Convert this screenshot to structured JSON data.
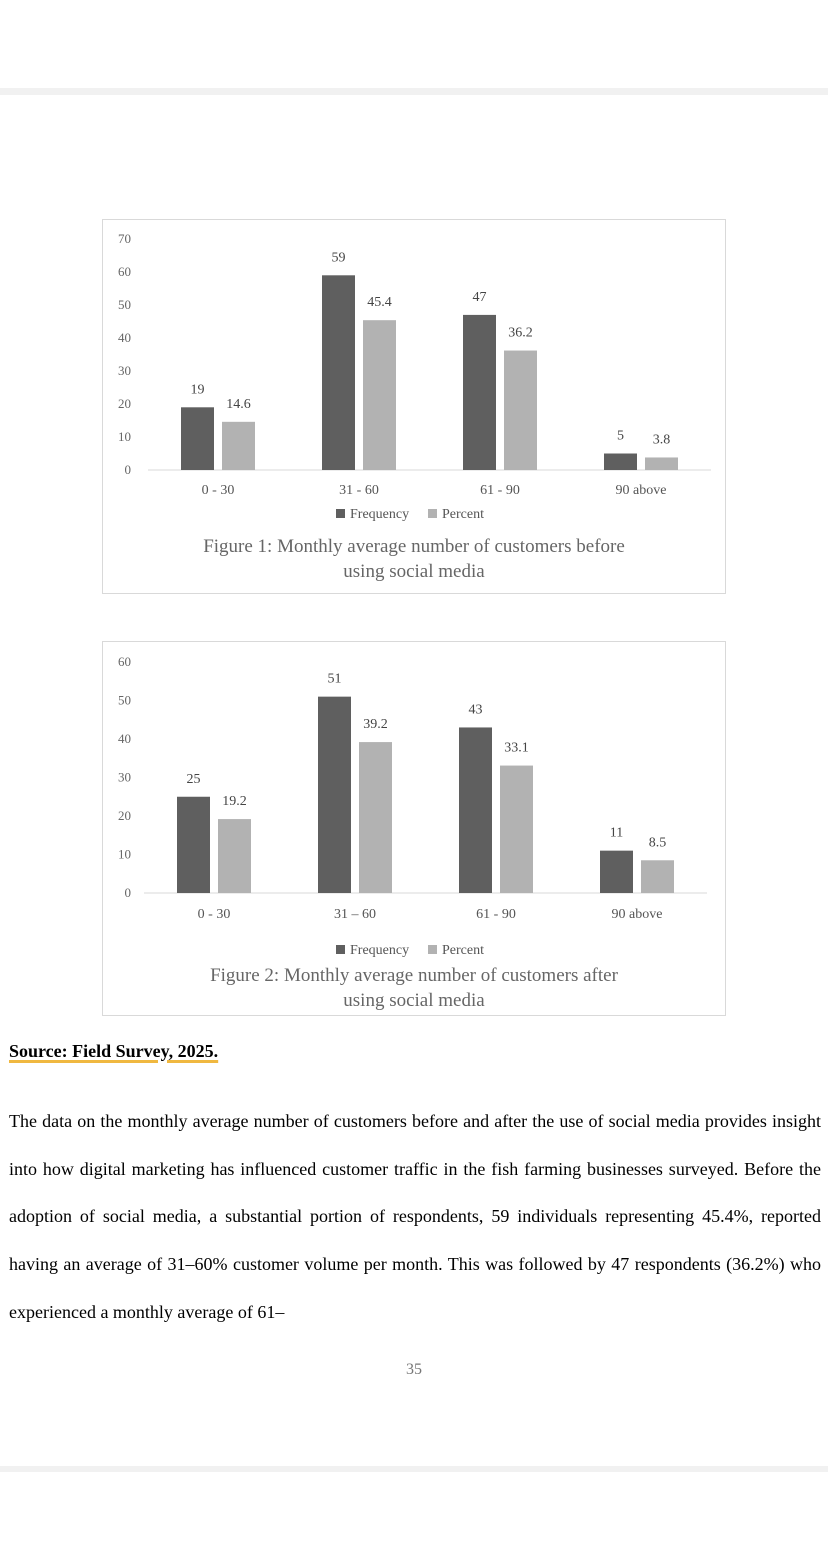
{
  "chart_data": [
    {
      "type": "bar",
      "title": "Figure 1: Monthly average number of customers before using social media",
      "title_lines": [
        "Figure 1: Monthly average number of customers before",
        "using social media"
      ],
      "categories": [
        "0 - 30",
        "31 - 60",
        "61 - 90",
        "90 above"
      ],
      "series": [
        {
          "name": "Frequency",
          "values": [
            19,
            59,
            47,
            5
          ],
          "labels": [
            "19",
            "59",
            "47",
            "5"
          ],
          "color": "#5f5f5f"
        },
        {
          "name": "Percent",
          "values": [
            14.6,
            45.4,
            36.2,
            3.8
          ],
          "labels": [
            "14.6",
            "45.4",
            "36.2",
            "3.8"
          ],
          "color": "#b2b2b2"
        }
      ],
      "ylim": [
        0,
        70
      ],
      "yticks": [
        "0",
        "10",
        "20",
        "30",
        "40",
        "50",
        "60",
        "70"
      ],
      "legend": "bottom",
      "grid": false
    },
    {
      "type": "bar",
      "title": "Figure 2: Monthly average number of customers after using social media",
      "title_lines": [
        "Figure 2: Monthly average number of customers after",
        "using social media"
      ],
      "categories": [
        "0 - 30",
        "31 – 60",
        "61 - 90",
        "90 above"
      ],
      "series": [
        {
          "name": "Frequency",
          "values": [
            25,
            51,
            43,
            11
          ],
          "labels": [
            "25",
            "51",
            "43",
            "11"
          ],
          "color": "#5f5f5f"
        },
        {
          "name": "Percent",
          "values": [
            19.2,
            39.2,
            33.1,
            8.5
          ],
          "labels": [
            "19.2",
            "39.2",
            "33.1",
            "8.5"
          ],
          "color": "#b2b2b2"
        }
      ],
      "ylim": [
        0,
        60
      ],
      "yticks": [
        "0",
        "10",
        "20",
        "30",
        "40",
        "50",
        "60"
      ],
      "legend": "bottom",
      "grid": false
    }
  ],
  "source": "Source: Field Survey, 2025.",
  "paragraph": "The data on the monthly average number of customers before and after the use of social media provides insight into how digital marketing has influenced customer traffic in the fish farming businesses surveyed. Before the adoption of social media, a substantial portion of respondents, 59 individuals representing 45.4%, reported having an average of 31–60% customer volume per month. This was followed by 47 respondents (36.2%) who experienced a monthly average of 61–",
  "page_number": "35"
}
